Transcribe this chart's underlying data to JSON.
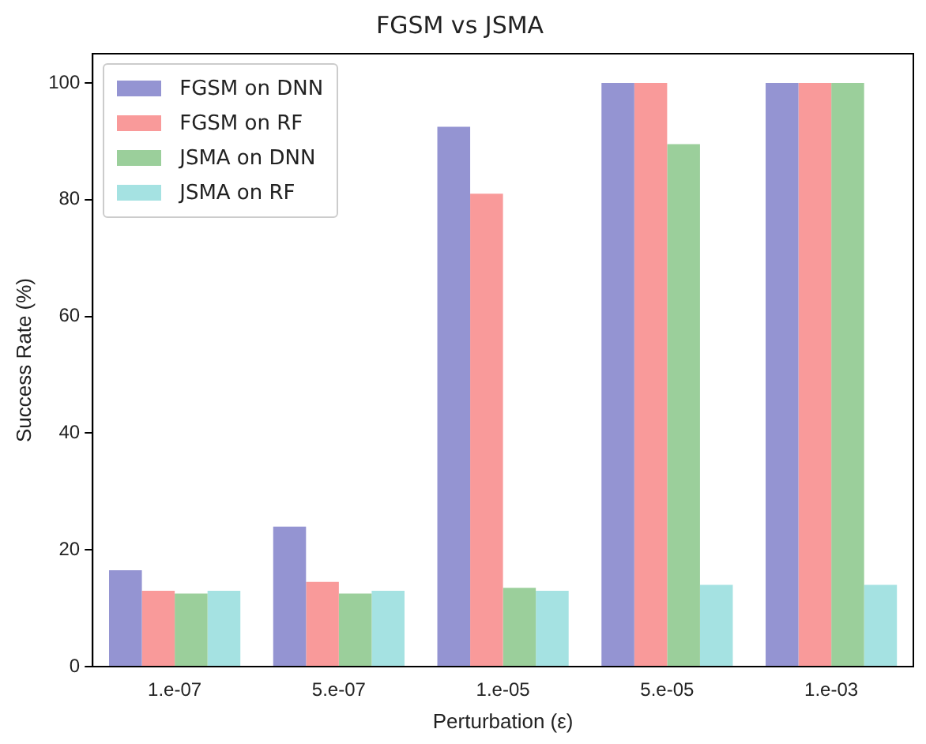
{
  "chart_data": {
    "type": "bar",
    "title": "FGSM vs JSMA",
    "xlabel": "Perturbation (ε)",
    "ylabel": "Success Rate (%)",
    "categories": [
      "1.e-07",
      "5.e-07",
      "1.e-05",
      "5.e-05",
      "1.e-03"
    ],
    "series": [
      {
        "name": "FGSM on DNN",
        "color": "#9494d2",
        "values": [
          16.5,
          24,
          92.5,
          100,
          100
        ]
      },
      {
        "name": "FGSM on RF",
        "color": "#f99a9a",
        "values": [
          13,
          14.5,
          81,
          100,
          100
        ]
      },
      {
        "name": "JSMA on DNN",
        "color": "#9bcf9b",
        "values": [
          12.5,
          12.5,
          13.5,
          89.5,
          100
        ]
      },
      {
        "name": "JSMA on RF",
        "color": "#a5e2e2",
        "values": [
          13,
          13,
          13,
          14,
          14
        ]
      }
    ],
    "ylim": [
      0,
      105
    ],
    "yticks": [
      0,
      20,
      40,
      60,
      80,
      100
    ],
    "grid": false,
    "legend": "top left"
  }
}
